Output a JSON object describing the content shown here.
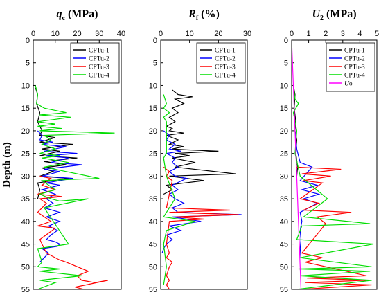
{
  "chart_data": [
    {
      "type": "line",
      "title": "qc (MPa)",
      "title_main": "q",
      "title_sub": "c",
      "title_unit": " (MPa)",
      "ylabel": "Depth (m)",
      "xlim": [
        0,
        40
      ],
      "ylim": [
        55,
        0
      ],
      "xticks": [
        0,
        10,
        20,
        30,
        40
      ],
      "yticks": [
        0,
        5,
        10,
        15,
        20,
        25,
        30,
        35,
        40,
        45,
        50,
        55
      ],
      "legend_position": "top-right",
      "series": [
        {
          "name": "CPTu-1",
          "color": "#000000",
          "x": [
            1,
            2,
            1.5,
            3,
            2,
            4,
            3,
            10,
            3,
            18,
            4,
            12,
            3,
            20,
            5,
            15,
            4,
            9,
            3,
            16,
            2,
            3,
            2
          ],
          "y": [
            10.5,
            12,
            14,
            16,
            18,
            20,
            21,
            21.5,
            22.5,
            23,
            24,
            24.5,
            25.5,
            26,
            26.8,
            27.5,
            28.2,
            29,
            30,
            30.5,
            31.5,
            33,
            35
          ]
        },
        {
          "name": "CPTu-2",
          "color": "#0000ff",
          "x": [
            2,
            4,
            3,
            9,
            4,
            15,
            5,
            20,
            6,
            16,
            8,
            22,
            5,
            12,
            4,
            18,
            6,
            12,
            4,
            10,
            6,
            9,
            5,
            12,
            6,
            12,
            7,
            11,
            8,
            6,
            10,
            12,
            11,
            4,
            7,
            5,
            3
          ],
          "y": [
            20,
            21,
            22,
            22.5,
            23,
            23.5,
            24.5,
            25,
            25.5,
            26,
            27,
            27.5,
            28.5,
            29,
            30,
            30.5,
            31.5,
            32,
            33,
            34,
            35,
            36,
            37,
            38,
            39,
            40,
            41,
            42,
            43,
            44,
            44.5,
            45,
            45.5,
            46,
            47,
            48,
            49
          ]
        },
        {
          "name": "CPTu-3",
          "color": "#ff0000",
          "x": [
            3,
            8,
            4,
            10,
            2,
            13,
            3,
            6,
            2,
            5,
            8,
            2,
            10,
            3,
            6,
            12,
            15,
            25,
            20,
            22,
            28,
            34,
            24,
            19,
            23
          ],
          "y": [
            30,
            30.5,
            32,
            33,
            34,
            34.5,
            35,
            36,
            38,
            39,
            40,
            41,
            41.5,
            44,
            47,
            48.5,
            49,
            51,
            52,
            53,
            53.5,
            53,
            54,
            54.5,
            55
          ]
        },
        {
          "name": "CPTu-4",
          "color": "#00dd00",
          "x": [
            1,
            2,
            1.5,
            5,
            15,
            3,
            17,
            2,
            10,
            2,
            13,
            3,
            37,
            5,
            8,
            4,
            10,
            3,
            12,
            4,
            16,
            5,
            30,
            4,
            10,
            3,
            8,
            12,
            25,
            5,
            16,
            2,
            4,
            2,
            12,
            3,
            22,
            3,
            10,
            2
          ],
          "y": [
            10,
            12,
            14,
            15,
            16,
            16.5,
            17,
            18,
            18.5,
            19,
            19.5,
            20,
            20.5,
            21,
            22,
            23,
            24,
            25,
            25.5,
            26,
            27,
            28,
            30.5,
            31,
            33,
            34,
            35,
            35.5,
            35,
            37,
            45,
            46,
            49,
            50,
            50.5,
            51,
            52,
            53,
            53.5,
            55
          ]
        }
      ]
    },
    {
      "type": "line",
      "title": "Rf (%)",
      "title_main": "R",
      "title_sub": "f",
      "title_unit": " (%)",
      "ylabel": "",
      "xlim": [
        0,
        30
      ],
      "ylim": [
        55,
        0
      ],
      "xticks": [
        0,
        10,
        20,
        30
      ],
      "yticks": [
        0,
        5,
        10,
        15,
        20,
        25,
        30,
        35,
        40,
        45,
        50,
        55
      ],
      "legend_position": "top-right",
      "series": [
        {
          "name": "CPTu-1",
          "color": "#000000",
          "x": [
            4,
            6,
            11,
            5,
            8,
            4,
            6,
            3,
            5,
            2,
            4,
            3,
            8,
            2,
            6,
            3,
            8,
            4,
            9,
            20,
            5,
            10,
            4,
            12,
            5,
            26,
            3,
            15,
            2,
            4,
            1
          ],
          "y": [
            11,
            12,
            12.5,
            13,
            14,
            15,
            16,
            17,
            18,
            19,
            19.5,
            20,
            20.5,
            21,
            22,
            23,
            23.5,
            24,
            24.2,
            24.5,
            25,
            25.5,
            26,
            27,
            28,
            29.5,
            30,
            31,
            32,
            33,
            34
          ]
        },
        {
          "name": "CPTu-2",
          "color": "#0000ff",
          "x": [
            1,
            3,
            2,
            5,
            3,
            7,
            2,
            5,
            4,
            6,
            3,
            5,
            9,
            4,
            6,
            3,
            5,
            8,
            4,
            6,
            28,
            4,
            14,
            3,
            7,
            2,
            4,
            2,
            1,
            0.5
          ],
          "y": [
            20,
            21,
            22,
            23,
            24,
            24.5,
            25,
            26,
            27,
            28,
            29,
            30,
            30.5,
            32,
            33,
            34,
            35,
            36,
            37,
            38,
            38.5,
            39,
            40,
            41,
            42,
            43,
            44,
            45,
            46,
            47
          ]
        },
        {
          "name": "CPTu-3",
          "color": "#ff0000",
          "x": [
            1,
            3,
            2,
            4,
            2,
            24,
            3,
            27,
            5,
            15,
            3,
            2,
            3,
            2,
            4,
            3,
            2,
            3,
            2,
            3
          ],
          "y": [
            28,
            29,
            30,
            31,
            37,
            37.5,
            38,
            38.5,
            39,
            39.5,
            40,
            45,
            47,
            48,
            49,
            50,
            52,
            53,
            54,
            55
          ]
        },
        {
          "name": "CPTu-4",
          "color": "#00dd00",
          "x": [
            1,
            2,
            1,
            3,
            1,
            2,
            2,
            1,
            2,
            5,
            1,
            12,
            2,
            1,
            2,
            1
          ],
          "y": [
            12,
            14,
            15,
            16,
            17,
            18,
            25,
            26,
            30,
            35,
            39,
            40,
            42,
            45,
            50,
            54
          ]
        }
      ]
    },
    {
      "type": "line",
      "title": "U2 (MPa)",
      "title_main": "U",
      "title_sub": "2",
      "title_unit": " (MPa)",
      "ylabel": "",
      "xlim": [
        0,
        5
      ],
      "ylim": [
        55,
        0
      ],
      "xticks": [
        0,
        1,
        2,
        3,
        4,
        5
      ],
      "yticks": [
        0,
        5,
        10,
        15,
        20,
        25,
        30,
        35,
        40,
        45,
        50,
        55
      ],
      "legend_position": "top-right",
      "series": [
        {
          "name": "CPTu-1",
          "color": "#000000",
          "x": [
            0.1,
            0.2,
            0.15,
            0.25,
            0.2,
            0.3,
            0.25,
            0.35,
            0.3
          ],
          "y": [
            10,
            12,
            15,
            18,
            20,
            22,
            25,
            28,
            30
          ]
        },
        {
          "name": "CPTu-2",
          "color": "#0000ff",
          "x": [
            0.2,
            0.3,
            0.5,
            1.2,
            0.5,
            1.5,
            0.6,
            1.6,
            0.7,
            1.5,
            0.5,
            0.6,
            0.5,
            0.55,
            0.5,
            0.55
          ],
          "y": [
            20,
            24,
            27,
            28,
            31,
            32,
            33,
            34,
            35,
            36,
            38,
            40,
            42,
            44,
            46,
            48
          ]
        },
        {
          "name": "CPTu-3",
          "color": "#ff0000",
          "x": [
            0.3,
            2.9,
            0.6,
            2.3,
            0.7,
            1.8,
            0.5,
            1.6,
            0.7,
            3.5,
            1.5,
            2.0,
            0.6,
            1.8,
            0.8,
            4.4,
            0.9,
            4.4,
            0.8,
            4.7,
            0.6
          ],
          "y": [
            28,
            28.5,
            29.5,
            30,
            31,
            31.5,
            35,
            36,
            37.5,
            38,
            39,
            40.5,
            47,
            48,
            49,
            52,
            52.5,
            53,
            53.5,
            54,
            55
          ]
        },
        {
          "name": "CPTu-4",
          "color": "#00dd00",
          "x": [
            0.1,
            0.2,
            0.4,
            0.1,
            0.3,
            0.2,
            0.5,
            2.1,
            0.7,
            4.6,
            0.6,
            0.3,
            4.8,
            0.5,
            4.7,
            0.4,
            4.6,
            0.5,
            4.7,
            0.3
          ],
          "y": [
            10,
            13,
            14,
            16,
            20,
            25,
            30,
            35,
            39,
            40.5,
            41,
            44,
            45,
            48,
            50,
            50.5,
            51,
            52,
            53,
            55
          ]
        },
        {
          "name": "Uo",
          "color": "#ff00ff",
          "x": [
            0.0,
            0.55
          ],
          "y": [
            0,
            55
          ]
        }
      ]
    }
  ]
}
